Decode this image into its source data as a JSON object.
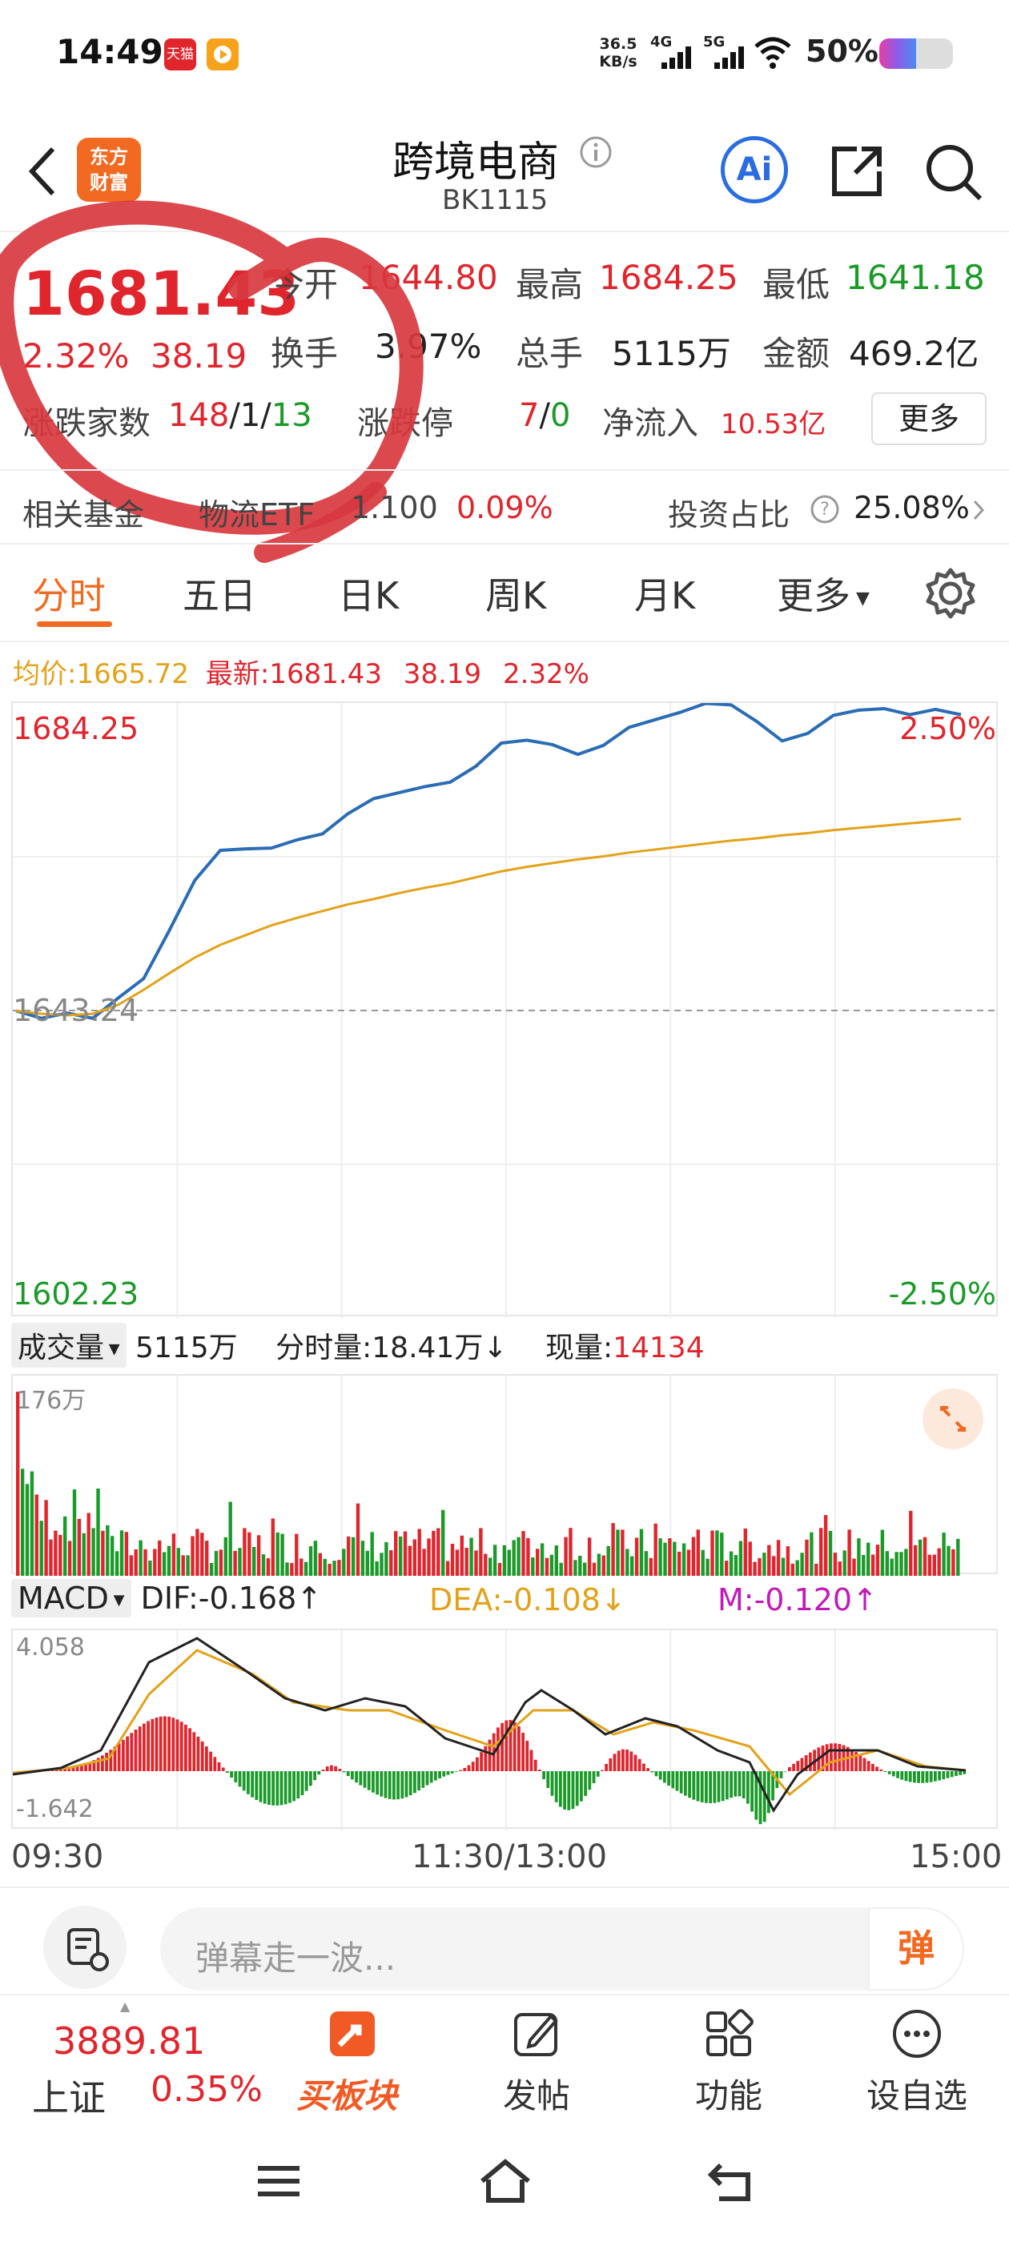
{
  "status": {
    "time": "14:49",
    "app1": "天猫",
    "speed_top": "36.5",
    "speed_bottom": "KB/s",
    "net1": "4G",
    "net2": "5G",
    "battery": "50%"
  },
  "header": {
    "title": "跨境电商",
    "code": "BK1115",
    "logo_line1": "东方",
    "logo_line2": "财富",
    "ai": "Ai"
  },
  "quote": {
    "price": "1681.43",
    "pct": "2.32%",
    "chg": "38.19",
    "open_label": "今开",
    "open": "1644.80",
    "high_label": "最高",
    "high": "1684.25",
    "low_label": "最低",
    "low": "1641.18",
    "turnover_label": "换手",
    "turnover": "3.97%",
    "volume_label": "总手",
    "volume": "5115万",
    "amount_label": "金额",
    "amount": "469.2亿",
    "breadth_label": "涨跌家数",
    "breadth_up": "148",
    "breadth_sep1": "/",
    "breadth_flat": "1",
    "breadth_sep2": "/",
    "breadth_down": "13",
    "limit_label": "涨跌停",
    "limit_up": "7",
    "limit_sep": "/",
    "limit_down": "0",
    "inflow_label": "净流入",
    "inflow": "10.53亿",
    "more": "更多"
  },
  "fund": {
    "label": "相关基金",
    "name": "物流ETF",
    "value": "1.100",
    "pct": "0.09%",
    "ratio_label": "投资占比",
    "ratio": "25.08%"
  },
  "tabs": [
    {
      "label": "分时",
      "active": true
    },
    {
      "label": "五日"
    },
    {
      "label": "日K"
    },
    {
      "label": "周K"
    },
    {
      "label": "月K"
    },
    {
      "label": "更多"
    }
  ],
  "info_line": {
    "avg_label": "均价:",
    "avg": "1665.72",
    "latest_label": "最新:",
    "latest": "1681.43",
    "chg": "38.19",
    "pct": "2.32%"
  },
  "price_chart": {
    "top_label": "1684.25",
    "base_label": "1643.24",
    "bottom_label": "1602.23",
    "top_pct": "2.50%",
    "bottom_pct": "-2.50%"
  },
  "volume_bar": {
    "selector": "成交量",
    "total": "5115万",
    "label1": "分时量:",
    "value1": "18.41万",
    "arrow1": "↓",
    "label2": "现量:",
    "value2": "14134",
    "axis_max": "176万"
  },
  "macd_bar": {
    "selector": "MACD",
    "dif": "DIF:-0.168",
    "dif_arrow": "↑",
    "dea": "DEA:-0.108",
    "dea_arrow": "↓",
    "m": "M:-0.120",
    "m_arrow": "↑",
    "axis_max": "4.058",
    "axis_min": "-1.642"
  },
  "time_axis": [
    "09:30",
    "11:30/13:00",
    "15:00"
  ],
  "comment": {
    "placeholder": "弹幕走一波...",
    "danmu": "弹"
  },
  "bottom_nav": {
    "index_value": "3889.81",
    "index_name": "上证",
    "index_pct": "0.35%",
    "buy_label": "买板块",
    "post": "发帖",
    "func": "功能",
    "watch": "设自选"
  },
  "colors": {
    "up": "#e0252d",
    "down": "#1b9a2a",
    "avg_line": "#e3a21a",
    "price_line": "#2a6cb5",
    "accent": "#f26a21",
    "dif": "#222222",
    "dea": "#e3a21a",
    "m": "#c21ab8"
  },
  "chart_data": {
    "type": "line",
    "x_axis_labels": [
      "09:30",
      "11:30/13:00",
      "15:00"
    ],
    "ylim": [
      1602.23,
      1684.25
    ],
    "base": 1643.24,
    "series": [
      {
        "name": "最新",
        "values": [
          1643.2,
          1642.2,
          1642.9,
          1642.2,
          1644.9,
          1647.5,
          1653.9,
          1660.6,
          1664.6,
          1664.8,
          1664.9,
          1666.0,
          1666.8,
          1669.5,
          1671.5,
          1672.3,
          1673.1,
          1673.7,
          1675.8,
          1678.9,
          1679.3,
          1678.7,
          1677.4,
          1678.6,
          1681.0,
          1682.0,
          1683.0,
          1684.2,
          1684.0,
          1681.8,
          1679.2,
          1680.2,
          1682.6,
          1683.3,
          1683.5,
          1682.7,
          1683.4,
          1682.7
        ]
      },
      {
        "name": "均价",
        "values": [
          1643.2,
          1642.8,
          1642.6,
          1642.8,
          1644.0,
          1646.0,
          1648.2,
          1650.3,
          1652.0,
          1653.3,
          1654.6,
          1655.6,
          1656.5,
          1657.4,
          1658.1,
          1658.9,
          1659.6,
          1660.2,
          1661.0,
          1661.8,
          1662.4,
          1662.9,
          1663.4,
          1663.8,
          1664.3,
          1664.7,
          1665.1,
          1665.5,
          1665.9,
          1666.2,
          1666.6,
          1666.9,
          1667.3,
          1667.6,
          1667.9,
          1668.2,
          1668.5,
          1668.8
        ]
      }
    ]
  }
}
